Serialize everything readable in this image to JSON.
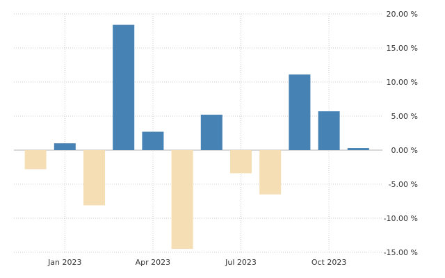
{
  "chart_data": {
    "type": "bar",
    "x": [
      "2022-12",
      "2023-01",
      "2023-02",
      "2023-03",
      "2023-04",
      "2023-05",
      "2023-06",
      "2023-07",
      "2023-08",
      "2023-09",
      "2023-10",
      "2023-11"
    ],
    "values": [
      -2.8,
      1.0,
      -8.1,
      18.4,
      2.7,
      -14.5,
      5.2,
      -3.4,
      -6.5,
      11.1,
      5.7,
      0.3
    ],
    "xtick_labels": [
      {
        "x": "2023-01",
        "label": "Jan 2023"
      },
      {
        "x": "2023-04",
        "label": "Apr 2023"
      },
      {
        "x": "2023-07",
        "label": "Jul 2023"
      },
      {
        "x": "2023-10",
        "label": "Oct 2023"
      }
    ],
    "yticks": [
      20,
      15,
      10,
      5,
      0,
      -5,
      -10,
      -15
    ],
    "ytick_labels": [
      "20.00 %",
      "15.00 %",
      "10.00 %",
      "5.00 %",
      "0.00 %",
      "-5.00 %",
      "-10.00 %",
      "-15.00 %"
    ],
    "ylim": [
      -15,
      20
    ],
    "y_axis_position": "right",
    "grid": true,
    "colors": {
      "positive": "#4682b4",
      "negative": "#f5deb3",
      "grid": "#cccccc",
      "zero_line": "#b0b0b0"
    },
    "title": "",
    "xlabel": "",
    "ylabel": ""
  }
}
